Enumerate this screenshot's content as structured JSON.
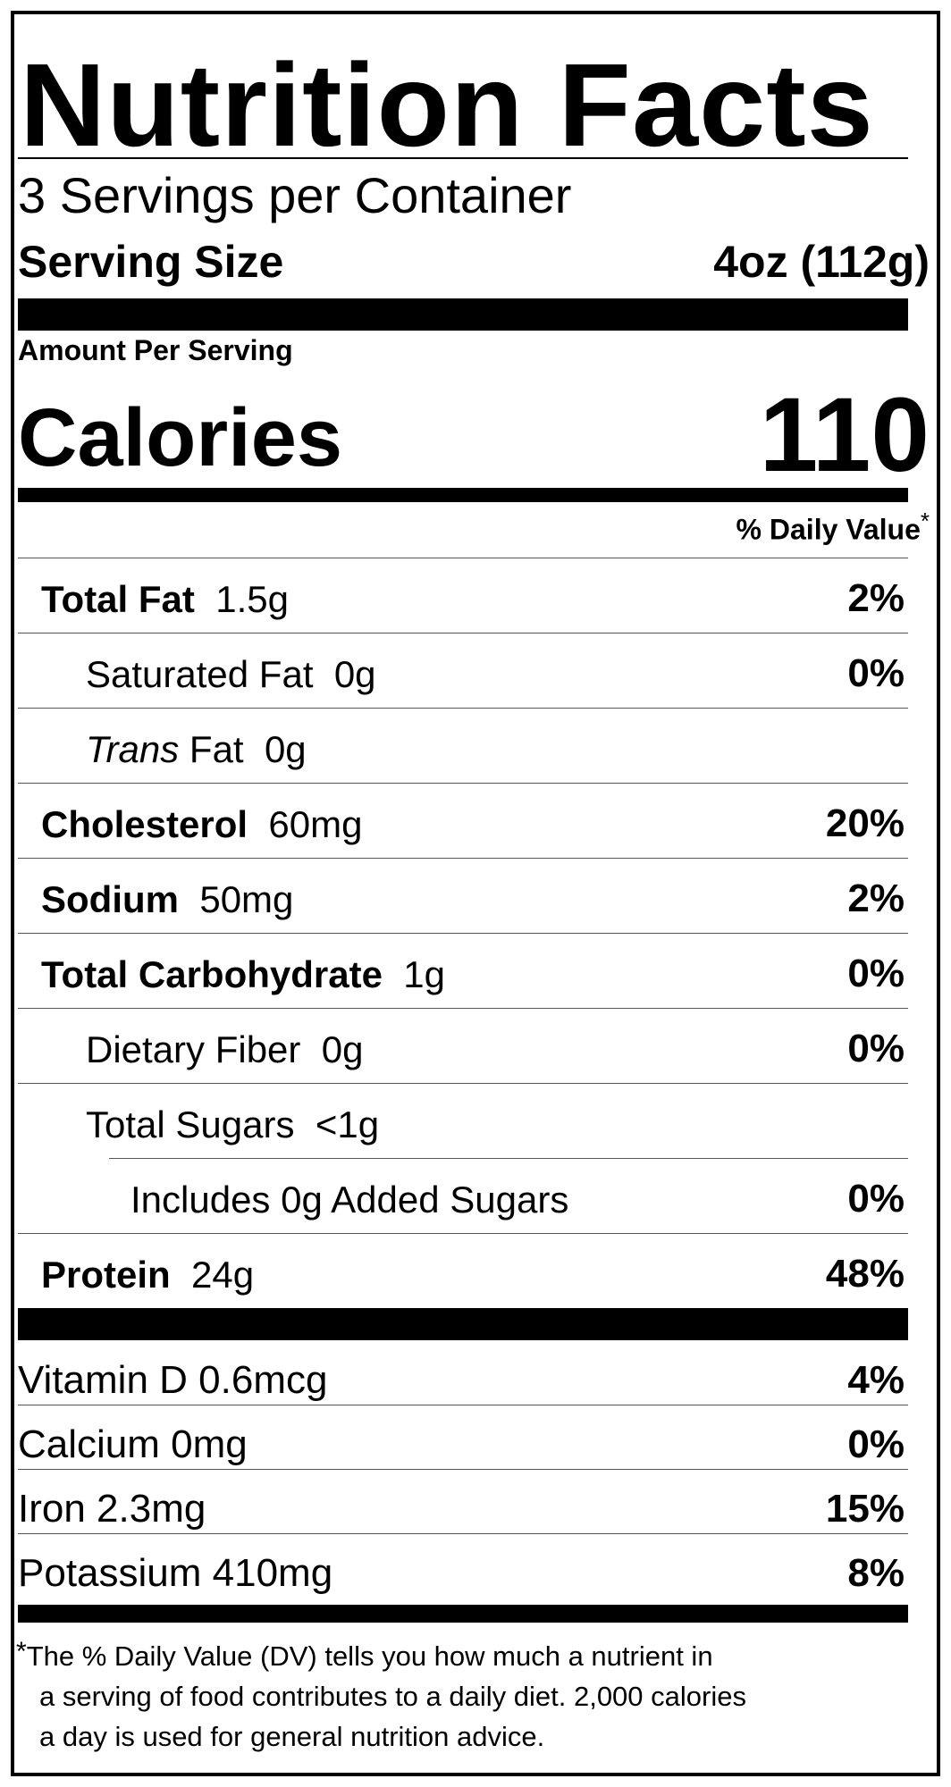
{
  "title": "Nutrition Facts",
  "servings_per_container": "3 Servings per Container",
  "serving_size": {
    "label": "Serving Size",
    "value": "4oz (112g)"
  },
  "amount_per_serving": "Amount Per Serving",
  "calories": {
    "label": "Calories",
    "value": "110"
  },
  "daily_value_header": "% Daily Value",
  "asterisk": "*",
  "nutrients": [
    {
      "name": "Total Fat",
      "amount": "1.5g",
      "dv": "2%"
    },
    {
      "name": "Saturated Fat",
      "amount": "0g",
      "dv": "0%"
    },
    {
      "name_italic": "Trans",
      "name": "Fat",
      "amount": "0g",
      "dv": ""
    },
    {
      "name": "Cholesterol",
      "amount": "60mg",
      "dv": "20%"
    },
    {
      "name": "Sodium",
      "amount": "50mg",
      "dv": "2%"
    },
    {
      "name": "Total Carbohydrate",
      "amount": "1g",
      "dv": "0%"
    },
    {
      "name": "Dietary Fiber",
      "amount": "0g",
      "dv": "0%"
    },
    {
      "name": "Total Sugars",
      "amount": "<1g",
      "dv": ""
    },
    {
      "name": "Includes 0g Added Sugars",
      "amount": "",
      "dv": "0%"
    },
    {
      "name": "Protein",
      "amount": "24g",
      "dv": "48%"
    }
  ],
  "vitamins": [
    {
      "label": "Vitamin D 0.6mcg",
      "dv": "4%"
    },
    {
      "label": "Calcium 0mg",
      "dv": "0%"
    },
    {
      "label": "Iron 2.3mg",
      "dv": "15%"
    },
    {
      "label": "Potassium 410mg",
      "dv": "8%"
    }
  ],
  "footnote": {
    "line1": "The % Daily Value (DV) tells you how much a nutrient in",
    "line2": "a serving of food contributes to a daily diet. 2,000 calories",
    "line3": "a day is used for general nutrition advice."
  }
}
